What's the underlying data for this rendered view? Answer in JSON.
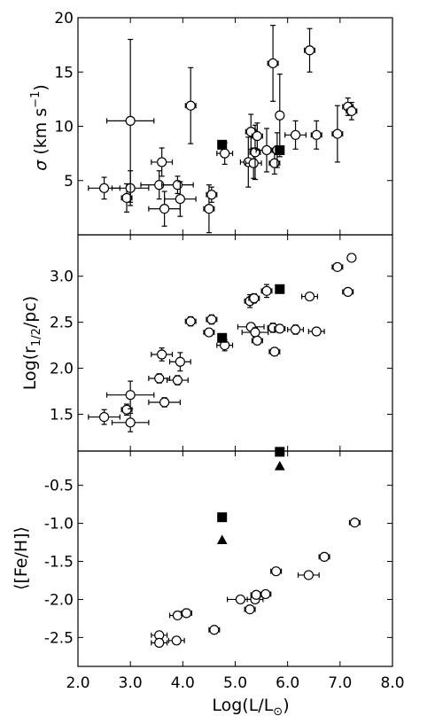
{
  "chart_data": {
    "type": "scatter",
    "shared_x": {
      "label_main": "Log(L/L",
      "label_sub": "⊙",
      "label_close": ")",
      "xlim": [
        2.0,
        8.0
      ],
      "ticks": [
        2.0,
        3.0,
        4.0,
        5.0,
        6.0,
        7.0,
        8.0
      ],
      "tick_labels": [
        "2.0",
        "3.0",
        "4.0",
        "5.0",
        "6.0",
        "7.0",
        "8.0"
      ]
    },
    "panels": [
      {
        "id": "sigma",
        "ylabel_sym": "σ",
        "ylabel_text": " (km s",
        "ylabel_sup": "−1",
        "ylabel_close": ")",
        "ylim": [
          0,
          20
        ],
        "yticks": [
          5,
          10,
          15,
          20
        ],
        "ytick_labels": [
          "5",
          "10",
          "15",
          "20"
        ],
        "open_points": [
          {
            "x": 2.5,
            "y": 4.3,
            "xerr": 0.3,
            "yerr": 1.0
          },
          {
            "x": 2.93,
            "y": 3.4,
            "xerr": 0.1,
            "yerr": 1.3
          },
          {
            "x": 3.0,
            "y": 4.3,
            "xerr": 0.35,
            "yerr": 1.6
          },
          {
            "x": 3.0,
            "y": 10.5,
            "xerr": 0.45,
            "yerr": 7.5
          },
          {
            "x": 3.55,
            "y": 4.6,
            "xerr": 0.35,
            "yerr": 1.3
          },
          {
            "x": 3.6,
            "y": 6.7,
            "xerr": 0.2,
            "yerr": 1.3
          },
          {
            "x": 3.65,
            "y": 2.4,
            "xerr": 0.3,
            "yerr": 1.6
          },
          {
            "x": 3.9,
            "y": 4.6,
            "xerr": 0.3,
            "yerr": 0.8
          },
          {
            "x": 3.95,
            "y": 3.3,
            "xerr": 0.3,
            "yerr": 1.6
          },
          {
            "x": 4.15,
            "y": 11.9,
            "xerr": 0.1,
            "yerr": 3.5
          },
          {
            "x": 4.5,
            "y": 2.4,
            "xerr": 0.1,
            "yerr": 2.2
          },
          {
            "x": 4.55,
            "y": 3.7,
            "xerr": 0.1,
            "yerr": 0.7
          },
          {
            "x": 4.8,
            "y": 7.5,
            "xerr": 0.15,
            "yerr": 1.0
          },
          {
            "x": 5.25,
            "y": 6.7,
            "xerr": 0.15,
            "yerr": 2.3
          },
          {
            "x": 5.3,
            "y": 9.5,
            "xerr": 0.1,
            "yerr": 1.6
          },
          {
            "x": 5.35,
            "y": 6.6,
            "xerr": 0.15,
            "yerr": 1.4
          },
          {
            "x": 5.38,
            "y": 7.6,
            "xerr": 0.1,
            "yerr": 2.5
          },
          {
            "x": 5.42,
            "y": 9.1,
            "xerr": 0.1,
            "yerr": 1.2
          },
          {
            "x": 5.6,
            "y": 7.8,
            "xerr": 0.2,
            "yerr": 2.0
          },
          {
            "x": 5.72,
            "y": 15.8,
            "xerr": 0.1,
            "yerr": 3.5
          },
          {
            "x": 5.75,
            "y": 6.6,
            "xerr": 0.1,
            "yerr": 1.0
          },
          {
            "x": 5.8,
            "y": 7.8,
            "xerr": 0.1,
            "yerr": 1.6
          },
          {
            "x": 5.85,
            "y": 11.0,
            "xerr": 0.05,
            "yerr": 3.8
          },
          {
            "x": 6.15,
            "y": 9.2,
            "xerr": 0.2,
            "yerr": 1.3
          },
          {
            "x": 6.42,
            "y": 17.0,
            "xerr": 0.1,
            "yerr": 2.0
          },
          {
            "x": 6.55,
            "y": 9.2,
            "xerr": 0.1,
            "yerr": 1.3
          },
          {
            "x": 6.95,
            "y": 9.3,
            "xerr": 0.1,
            "yerr": 2.6
          },
          {
            "x": 7.15,
            "y": 11.8,
            "xerr": 0.1,
            "yerr": 0.8
          },
          {
            "x": 7.22,
            "y": 11.4,
            "xerr": 0.1,
            "yerr": 0.8
          }
        ],
        "filled_squares": [
          {
            "x": 4.75,
            "y": 8.3
          },
          {
            "x": 5.85,
            "y": 7.8
          }
        ],
        "filled_triangles": []
      },
      {
        "id": "rhalf",
        "ylabel_main": "Log(r",
        "ylabel_sub": "1/2",
        "ylabel_close": "/pc)",
        "ylim": [
          1.1,
          3.45
        ],
        "yticks": [
          1.5,
          2.0,
          2.5,
          3.0
        ],
        "ytick_labels": [
          "1.5",
          "2.0",
          "2.5",
          "3.0"
        ],
        "open_points": [
          {
            "x": 2.5,
            "y": 1.47,
            "xerr": 0.3,
            "yerr": 0.08
          },
          {
            "x": 2.93,
            "y": 1.55,
            "xerr": 0.1,
            "yerr": 0.06
          },
          {
            "x": 3.0,
            "y": 1.71,
            "xerr": 0.45,
            "yerr": 0.15
          },
          {
            "x": 3.0,
            "y": 1.41,
            "xerr": 0.35,
            "yerr": 0.1
          },
          {
            "x": 3.55,
            "y": 1.89,
            "xerr": 0.2,
            "yerr": 0.05
          },
          {
            "x": 3.6,
            "y": 2.15,
            "xerr": 0.2,
            "yerr": 0.07
          },
          {
            "x": 3.65,
            "y": 1.63,
            "xerr": 0.3,
            "yerr": 0.05
          },
          {
            "x": 3.9,
            "y": 1.87,
            "xerr": 0.2,
            "yerr": 0.05
          },
          {
            "x": 3.95,
            "y": 2.07,
            "xerr": 0.2,
            "yerr": 0.1
          },
          {
            "x": 4.15,
            "y": 2.51,
            "xerr": 0.1,
            "yerr": 0.05
          },
          {
            "x": 4.5,
            "y": 2.39,
            "xerr": 0.1,
            "yerr": 0.04
          },
          {
            "x": 4.55,
            "y": 2.53,
            "xerr": 0.1,
            "yerr": 0.05
          },
          {
            "x": 4.8,
            "y": 2.25,
            "xerr": 0.15,
            "yerr": 0.06
          },
          {
            "x": 5.28,
            "y": 2.73,
            "xerr": 0.1,
            "yerr": 0.07
          },
          {
            "x": 5.3,
            "y": 2.45,
            "xerr": 0.25,
            "yerr": 0.04
          },
          {
            "x": 5.36,
            "y": 2.76,
            "xerr": 0.1,
            "yerr": 0.05
          },
          {
            "x": 5.38,
            "y": 2.39,
            "xerr": 0.25,
            "yerr": 0.05
          },
          {
            "x": 5.42,
            "y": 2.3,
            "xerr": 0.1,
            "yerr": 0.04
          },
          {
            "x": 5.6,
            "y": 2.84,
            "xerr": 0.1,
            "yerr": 0.07
          },
          {
            "x": 5.72,
            "y": 2.44,
            "xerr": 0.1,
            "yerr": 0.05
          },
          {
            "x": 5.75,
            "y": 2.18,
            "xerr": 0.1,
            "yerr": 0.04
          },
          {
            "x": 5.85,
            "y": 2.43,
            "xerr": 0.1,
            "yerr": 0.04
          },
          {
            "x": 6.15,
            "y": 2.42,
            "xerr": 0.15,
            "yerr": 0.05
          },
          {
            "x": 6.42,
            "y": 2.78,
            "xerr": 0.15,
            "yerr": 0.03
          },
          {
            "x": 6.55,
            "y": 2.4,
            "xerr": 0.15,
            "yerr": 0.03
          },
          {
            "x": 6.95,
            "y": 3.1,
            "xerr": 0.1,
            "yerr": 0.03
          },
          {
            "x": 7.15,
            "y": 2.83,
            "xerr": 0.1,
            "yerr": 0.03
          },
          {
            "x": 7.22,
            "y": 3.2,
            "xerr": 0.05,
            "yerr": 0.03
          }
        ],
        "filled_squares": [
          {
            "x": 4.75,
            "y": 2.33
          },
          {
            "x": 5.85,
            "y": 2.86
          }
        ],
        "filled_triangles": []
      },
      {
        "id": "feh",
        "ylabel_main": "⟨[Fe/H]⟩",
        "ylim": [
          -2.88,
          -0.05
        ],
        "yticks": [
          -2.5,
          -2.0,
          -1.5,
          -1.0,
          -0.5
        ],
        "ytick_labels": [
          "-2.5",
          "-2.0",
          "-1.5",
          "-1.0",
          "-0.5"
        ],
        "open_points": [
          {
            "x": 3.55,
            "y": -2.47,
            "xerr": 0.15,
            "yerr": 0
          },
          {
            "x": 3.55,
            "y": -2.57,
            "xerr": 0.15,
            "yerr": 0
          },
          {
            "x": 3.88,
            "y": -2.54,
            "xerr": 0.15,
            "yerr": 0
          },
          {
            "x": 3.9,
            "y": -2.21,
            "xerr": 0.15,
            "yerr": 0
          },
          {
            "x": 4.07,
            "y": -2.18,
            "xerr": 0.1,
            "yerr": 0
          },
          {
            "x": 4.6,
            "y": -2.4,
            "xerr": 0.1,
            "yerr": 0
          },
          {
            "x": 5.1,
            "y": -2.0,
            "xerr": 0.25,
            "yerr": 0
          },
          {
            "x": 5.28,
            "y": -2.13,
            "xerr": 0.1,
            "yerr": 0
          },
          {
            "x": 5.38,
            "y": -2.0,
            "xerr": 0.15,
            "yerr": 0
          },
          {
            "x": 5.4,
            "y": -1.94,
            "xerr": 0.1,
            "yerr": 0
          },
          {
            "x": 5.58,
            "y": -1.93,
            "xerr": 0.1,
            "yerr": 0
          },
          {
            "x": 5.78,
            "y": -1.63,
            "xerr": 0.1,
            "yerr": 0
          },
          {
            "x": 6.4,
            "y": -1.68,
            "xerr": 0.2,
            "yerr": 0
          },
          {
            "x": 6.7,
            "y": -1.44,
            "xerr": 0.1,
            "yerr": 0
          },
          {
            "x": 7.28,
            "y": -0.99,
            "xerr": 0.1,
            "yerr": 0
          }
        ],
        "filled_squares": [
          {
            "x": 4.75,
            "y": -0.92
          },
          {
            "x": 5.85,
            "y": -0.06
          }
        ],
        "filled_triangles": [
          {
            "x": 4.75,
            "y": -1.22
          },
          {
            "x": 5.85,
            "y": -0.25
          }
        ]
      }
    ],
    "legend": "none",
    "grid": false
  }
}
